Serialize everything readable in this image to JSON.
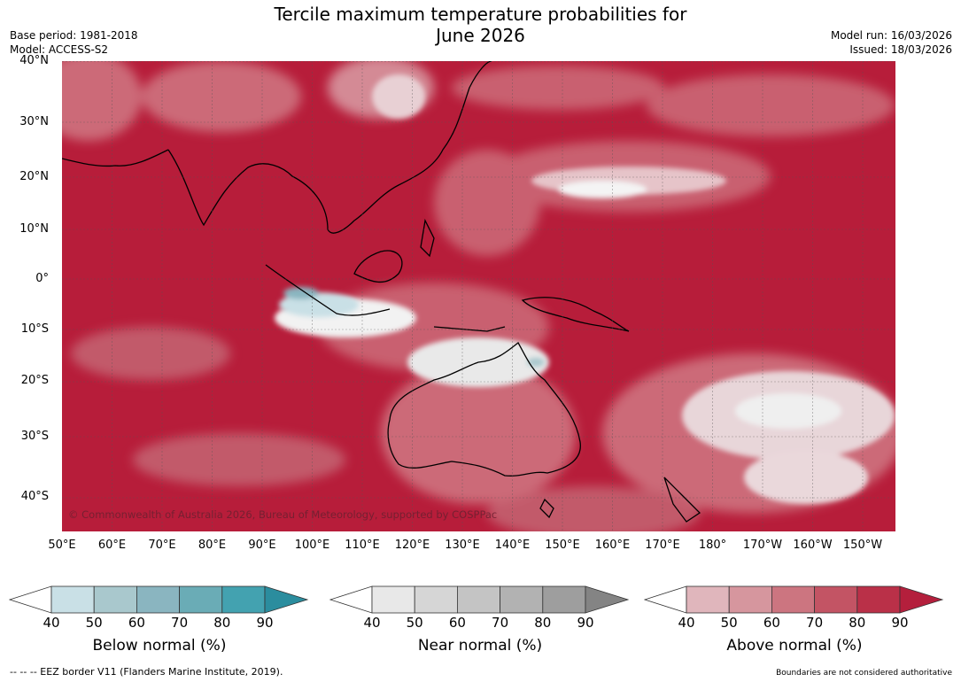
{
  "header": {
    "title_line1": "Tercile maximum temperature probabilities for",
    "title_line2": "June 2026",
    "base_period": "Base period: 1981-2018",
    "model": "Model: ACCESS-S2",
    "model_run": "Model run: 16/03/2026",
    "issued": "Issued: 18/03/2026"
  },
  "map": {
    "lat_labels": [
      "40°N",
      "30°N",
      "20°N",
      "10°N",
      "0°",
      "10°S",
      "20°S",
      "30°S",
      "40°S"
    ],
    "lon_labels": [
      "50°E",
      "60°E",
      "70°E",
      "80°E",
      "90°E",
      "100°E",
      "110°E",
      "120°E",
      "130°E",
      "140°E",
      "150°E",
      "160°E",
      "170°E",
      "180°",
      "170°W",
      "160°W",
      "150°W"
    ],
    "copyright": "© Commonwealth of Australia 2026, Bureau of Meteorology, supported by COSPPac"
  },
  "colorbars": [
    {
      "label": "Below normal (%)",
      "ticks": [
        "40",
        "50",
        "60",
        "70",
        "80",
        "90"
      ],
      "colors": [
        "#ffffff",
        "#c9e0e6",
        "#a9c8cd",
        "#8ab5c0",
        "#6aacb6",
        "#43a2b0",
        "#2b8d9e"
      ]
    },
    {
      "label": "Near normal (%)",
      "ticks": [
        "40",
        "50",
        "60",
        "70",
        "80",
        "90"
      ],
      "colors": [
        "#ffffff",
        "#e8e8e8",
        "#d6d6d6",
        "#c4c4c4",
        "#b2b2b2",
        "#9e9e9e",
        "#848484"
      ]
    },
    {
      "label": "Above normal (%)",
      "ticks": [
        "40",
        "50",
        "60",
        "70",
        "80",
        "90"
      ],
      "colors": [
        "#ffffff",
        "#e0b6bc",
        "#d6969e",
        "#cc7580",
        "#c35464",
        "#ba3048",
        "#b41f3c"
      ]
    }
  ],
  "footer": {
    "eez_note": "--  --  -- EEZ border V11 (Flanders Marine Institute, 2019).",
    "boundaries_note": "Boundaries are not considered authoritative"
  }
}
